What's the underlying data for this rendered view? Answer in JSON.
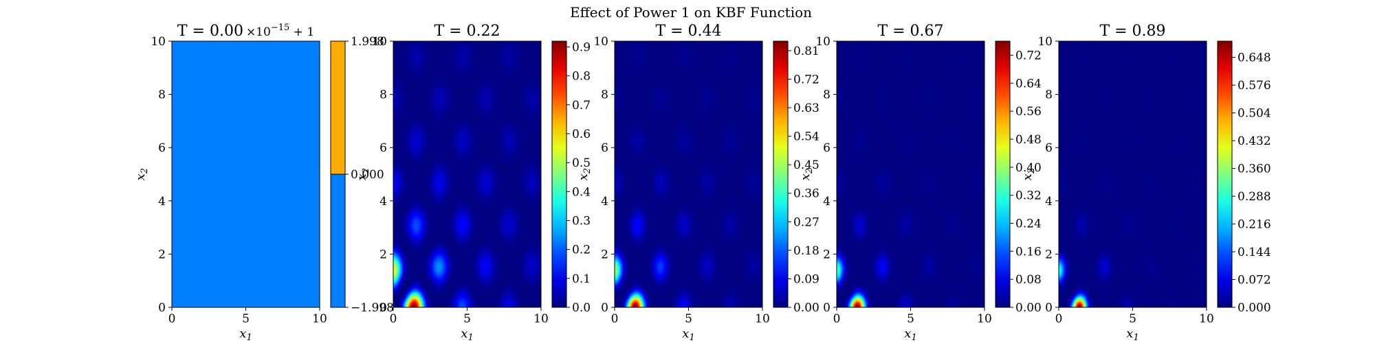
{
  "figure": {
    "suptitle": "Effect of Power 1 on KBF Function"
  },
  "chart_data": [
    {
      "type": "heatmap",
      "title": "T = 0.00",
      "title_suffix": "×10",
      "title_exp": "−15",
      "title_tail": " + 1",
      "xlabel": "x",
      "xlabel_sub": "1",
      "ylabel": "x",
      "ylabel_sub": "2",
      "xlim": [
        0,
        10
      ],
      "ylim": [
        0,
        10
      ],
      "x_ticks": [
        "0",
        "5",
        "10"
      ],
      "y_ticks": [
        "0",
        "2",
        "4",
        "6",
        "8",
        "10"
      ],
      "field": "constant",
      "colorbar": {
        "type": "discrete",
        "ticks": [
          "−1.998",
          "0.000",
          "1.998"
        ],
        "colors": [
          "#0080ff",
          "#ffab00"
        ]
      },
      "fill_color": "#0080ff"
    },
    {
      "type": "heatmap",
      "title": "T = 0.22",
      "xlabel": "x",
      "xlabel_sub": "1",
      "ylabel": "x",
      "ylabel_sub": "2",
      "xlim": [
        0,
        10
      ],
      "ylim": [
        0,
        10
      ],
      "x_ticks": [
        "0",
        "5",
        "10"
      ],
      "y_ticks": [
        "0",
        "2",
        "4",
        "6",
        "8",
        "10"
      ],
      "scale": 0.22,
      "colorbar": {
        "vmin": 0,
        "vmax": 0.92,
        "ticks": [
          "0.0",
          "0.1",
          "0.2",
          "0.3",
          "0.4",
          "0.5",
          "0.6",
          "0.7",
          "0.8",
          "0.9"
        ]
      }
    },
    {
      "type": "heatmap",
      "title": "T = 0.44",
      "xlabel": "x",
      "xlabel_sub": "1",
      "ylabel": "x",
      "ylabel_sub": "2",
      "xlim": [
        0,
        10
      ],
      "ylim": [
        0,
        10
      ],
      "x_ticks": [
        "0",
        "5",
        "10"
      ],
      "y_ticks": [
        "0",
        "2",
        "4",
        "6",
        "8",
        "10"
      ],
      "scale": 0.44,
      "colorbar": {
        "vmin": 0,
        "vmax": 0.84,
        "ticks": [
          "0.00",
          "0.09",
          "0.18",
          "0.27",
          "0.36",
          "0.45",
          "0.54",
          "0.63",
          "0.72",
          "0.81"
        ]
      }
    },
    {
      "type": "heatmap",
      "title": "T = 0.67",
      "xlabel": "x",
      "xlabel_sub": "1",
      "ylabel": "x",
      "ylabel_sub": "2",
      "xlim": [
        0,
        10
      ],
      "ylim": [
        0,
        10
      ],
      "x_ticks": [
        "0",
        "5",
        "10"
      ],
      "y_ticks": [
        "0",
        "2",
        "4",
        "6",
        "8",
        "10"
      ],
      "scale": 0.67,
      "colorbar": {
        "vmin": 0,
        "vmax": 0.76,
        "ticks": [
          "0.00",
          "0.08",
          "0.16",
          "0.24",
          "0.32",
          "0.40",
          "0.48",
          "0.56",
          "0.64",
          "0.72"
        ]
      }
    },
    {
      "type": "heatmap",
      "title": "T = 0.89",
      "xlabel": "x",
      "xlabel_sub": "1",
      "ylabel": "x",
      "ylabel_sub": "2",
      "xlim": [
        0,
        10
      ],
      "ylim": [
        0,
        10
      ],
      "x_ticks": [
        "0",
        "5",
        "10"
      ],
      "y_ticks": [
        "0",
        "2",
        "4",
        "6",
        "8",
        "10"
      ],
      "scale": 0.89,
      "colorbar": {
        "vmin": 0,
        "vmax": 0.69,
        "ticks": [
          "0.000",
          "0.072",
          "0.144",
          "0.216",
          "0.288",
          "0.360",
          "0.432",
          "0.504",
          "0.576",
          "0.648"
        ]
      }
    }
  ]
}
